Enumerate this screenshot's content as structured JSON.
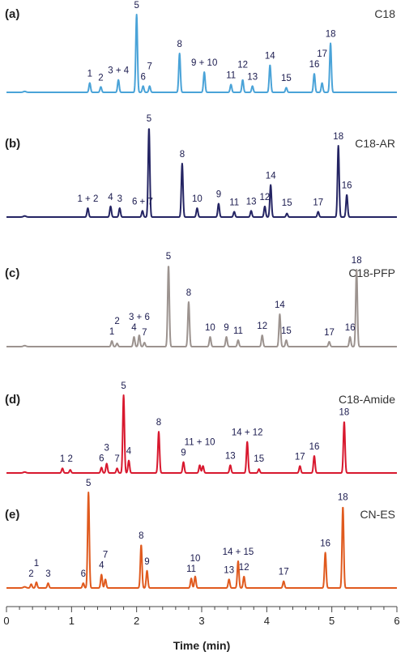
{
  "chart_data": {
    "type": "line",
    "xlabel": "Time (min)",
    "ylabel": "",
    "xlim": [
      0,
      6
    ],
    "xticks": [
      "0",
      "1",
      "2",
      "3",
      "4",
      "5",
      "6"
    ],
    "grid": false,
    "legend": "none",
    "panels": [
      {
        "letter": "(a)",
        "name": "C18",
        "color": "#4aa3d8",
        "peaks": [
          {
            "t": 1.28,
            "h": 0.12,
            "label": "1"
          },
          {
            "t": 1.45,
            "h": 0.07,
            "label": "2"
          },
          {
            "t": 1.72,
            "h": 0.16,
            "label": "3 + 4"
          },
          {
            "t": 2.0,
            "h": 1.0,
            "label": "5"
          },
          {
            "t": 2.1,
            "h": 0.08,
            "label": "6"
          },
          {
            "t": 2.2,
            "h": 0.08,
            "label": "7"
          },
          {
            "t": 2.66,
            "h": 0.5,
            "label": "8"
          },
          {
            "t": 3.04,
            "h": 0.26,
            "label": "9 + 10"
          },
          {
            "t": 3.45,
            "h": 0.1,
            "label": "11"
          },
          {
            "t": 3.63,
            "h": 0.16,
            "label": "12"
          },
          {
            "t": 3.78,
            "h": 0.08,
            "label": "13"
          },
          {
            "t": 4.05,
            "h": 0.35,
            "label": "14"
          },
          {
            "t": 4.3,
            "h": 0.06,
            "label": "15"
          },
          {
            "t": 4.73,
            "h": 0.24,
            "label": "16"
          },
          {
            "t": 4.85,
            "h": 0.12,
            "label": "17"
          },
          {
            "t": 4.98,
            "h": 0.63,
            "label": "18"
          }
        ]
      },
      {
        "letter": "(b)",
        "name": "C18-AR",
        "color": "#242463",
        "peaks": [
          {
            "t": 1.25,
            "h": 0.1,
            "label": "1 + 2"
          },
          {
            "t": 1.6,
            "h": 0.12,
            "label": "4"
          },
          {
            "t": 1.74,
            "h": 0.1,
            "label": "3"
          },
          {
            "t": 2.09,
            "h": 0.07,
            "label": "6 + 7"
          },
          {
            "t": 2.19,
            "h": 1.0,
            "label": "5"
          },
          {
            "t": 2.7,
            "h": 0.6,
            "label": "8"
          },
          {
            "t": 2.93,
            "h": 0.1,
            "label": "10"
          },
          {
            "t": 3.26,
            "h": 0.15,
            "label": "9"
          },
          {
            "t": 3.5,
            "h": 0.06,
            "label": "11"
          },
          {
            "t": 3.76,
            "h": 0.07,
            "label": "13"
          },
          {
            "t": 3.97,
            "h": 0.12,
            "label": "12"
          },
          {
            "t": 4.06,
            "h": 0.36,
            "label": "14"
          },
          {
            "t": 4.31,
            "h": 0.04,
            "label": "15"
          },
          {
            "t": 4.79,
            "h": 0.06,
            "label": "17"
          },
          {
            "t": 5.1,
            "h": 0.8,
            "label": "18"
          },
          {
            "t": 5.23,
            "h": 0.25,
            "label": "16"
          }
        ]
      },
      {
        "letter": "(c)",
        "name": "C18-PFP",
        "color": "#9c938f",
        "peaks": [
          {
            "t": 1.62,
            "h": 0.07,
            "label": "1"
          },
          {
            "t": 1.7,
            "h": 0.04,
            "label": "2"
          },
          {
            "t": 1.96,
            "h": 0.12,
            "label": "4"
          },
          {
            "t": 2.04,
            "h": 0.14,
            "label": "3 + 6"
          },
          {
            "t": 2.12,
            "h": 0.05,
            "label": "7"
          },
          {
            "t": 2.49,
            "h": 1.0,
            "label": "5"
          },
          {
            "t": 2.8,
            "h": 0.55,
            "label": "8"
          },
          {
            "t": 3.13,
            "h": 0.12,
            "label": "10"
          },
          {
            "t": 3.38,
            "h": 0.12,
            "label": "9"
          },
          {
            "t": 3.56,
            "h": 0.08,
            "label": "11"
          },
          {
            "t": 3.93,
            "h": 0.14,
            "label": "12"
          },
          {
            "t": 4.2,
            "h": 0.4,
            "label": "14"
          },
          {
            "t": 4.3,
            "h": 0.08,
            "label": "15"
          },
          {
            "t": 4.96,
            "h": 0.06,
            "label": "17"
          },
          {
            "t": 5.28,
            "h": 0.12,
            "label": "16"
          },
          {
            "t": 5.38,
            "h": 0.95,
            "label": "18"
          }
        ]
      },
      {
        "letter": "(d)",
        "name": "C18-Amide",
        "color": "#d8182e",
        "peaks": [
          {
            "t": 0.86,
            "h": 0.06,
            "label": "1"
          },
          {
            "t": 0.98,
            "h": 0.04,
            "label": "2"
          },
          {
            "t": 1.46,
            "h": 0.07,
            "label": "6"
          },
          {
            "t": 1.54,
            "h": 0.12,
            "label": "3"
          },
          {
            "t": 1.7,
            "h": 0.06,
            "label": "7"
          },
          {
            "t": 1.8,
            "h": 1.0,
            "label": "5"
          },
          {
            "t": 1.88,
            "h": 0.16,
            "label": "4"
          },
          {
            "t": 2.34,
            "h": 0.53,
            "label": "8"
          },
          {
            "t": 2.72,
            "h": 0.14,
            "label": "9"
          },
          {
            "t": 2.97,
            "h": 0.1,
            "label": "11 + 10"
          },
          {
            "t": 3.02,
            "h": 0.09,
            "label": ""
          },
          {
            "t": 3.44,
            "h": 0.1,
            "label": "13"
          },
          {
            "t": 3.7,
            "h": 0.4,
            "label": "14 + 12"
          },
          {
            "t": 3.88,
            "h": 0.05,
            "label": "15"
          },
          {
            "t": 4.51,
            "h": 0.09,
            "label": "17"
          },
          {
            "t": 4.73,
            "h": 0.22,
            "label": "16"
          },
          {
            "t": 5.19,
            "h": 0.66,
            "label": "18"
          }
        ]
      },
      {
        "letter": "(e)",
        "name": "CN-ES",
        "color": "#e05a1e",
        "peaks": [
          {
            "t": 0.38,
            "h": 0.04,
            "label": "2"
          },
          {
            "t": 0.46,
            "h": 0.06,
            "label": "1"
          },
          {
            "t": 0.64,
            "h": 0.05,
            "label": "3"
          },
          {
            "t": 1.18,
            "h": 0.05,
            "label": "6"
          },
          {
            "t": 1.26,
            "h": 1.0,
            "label": "5"
          },
          {
            "t": 1.46,
            "h": 0.14,
            "label": "4"
          },
          {
            "t": 1.52,
            "h": 0.09,
            "label": "7"
          },
          {
            "t": 2.07,
            "h": 0.45,
            "label": "8"
          },
          {
            "t": 2.16,
            "h": 0.18,
            "label": "9"
          },
          {
            "t": 2.84,
            "h": 0.1,
            "label": "11"
          },
          {
            "t": 2.9,
            "h": 0.12,
            "label": "10"
          },
          {
            "t": 3.42,
            "h": 0.09,
            "label": "13"
          },
          {
            "t": 3.56,
            "h": 0.28,
            "label": "14 + 15"
          },
          {
            "t": 3.65,
            "h": 0.12,
            "label": "12"
          },
          {
            "t": 4.26,
            "h": 0.07,
            "label": "17"
          },
          {
            "t": 4.9,
            "h": 0.37,
            "label": "16"
          },
          {
            "t": 5.17,
            "h": 0.85,
            "label": "18"
          }
        ]
      }
    ]
  }
}
